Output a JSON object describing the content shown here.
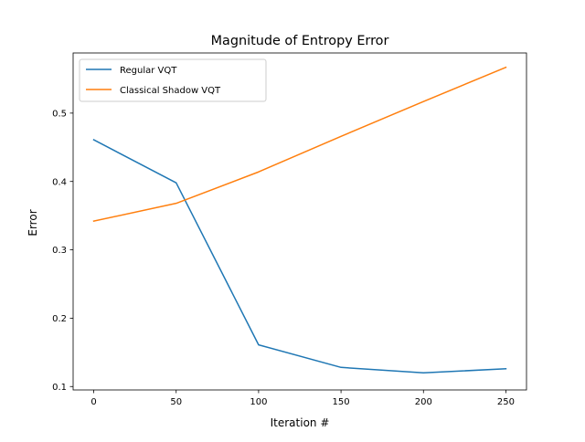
{
  "chart_data": {
    "type": "line",
    "title": "Magnitude of Entropy Error",
    "xlabel": "Iteration #",
    "ylabel": "Error",
    "x": [
      0,
      50,
      100,
      150,
      200,
      250
    ],
    "xlim": [
      -12.5,
      262.5
    ],
    "ylim": [
      0.095,
      0.588
    ],
    "xticks": [
      0,
      50,
      100,
      150,
      200,
      250
    ],
    "yticks": [
      0.1,
      0.2,
      0.3,
      0.4,
      0.5
    ],
    "xtick_labels": [
      "0",
      "50",
      "100",
      "150",
      "200",
      "250"
    ],
    "ytick_labels": [
      "0.1",
      "0.2",
      "0.3",
      "0.4",
      "0.5"
    ],
    "grid": false,
    "legend_position": "top-left",
    "series": [
      {
        "name": "Regular VQT",
        "color": "#1f77b4",
        "values": [
          0.461,
          0.398,
          0.161,
          0.128,
          0.12,
          0.126
        ]
      },
      {
        "name": "Classical Shadow VQT",
        "color": "#ff7f0e",
        "values": [
          0.342,
          0.368,
          0.414,
          0.466,
          0.517,
          0.567
        ]
      }
    ]
  }
}
